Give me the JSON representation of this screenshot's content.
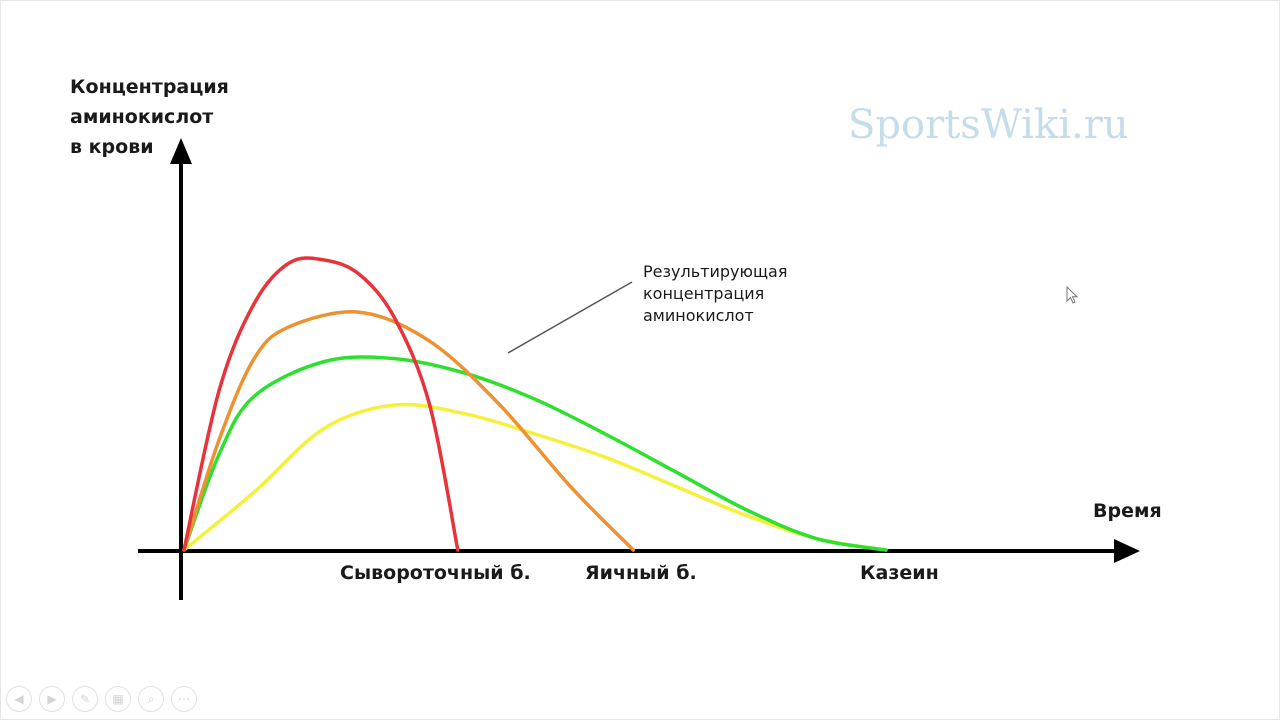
{
  "chart_data": {
    "type": "line",
    "ylabel": "Концентрация\nаминокислот\nв крови",
    "xlabel": "Время",
    "x_tick_labels": [
      {
        "text": "Сывороточный б.",
        "x": 0.39
      },
      {
        "text": "Яичный б.",
        "x": 0.64
      },
      {
        "text": "Казеин",
        "x": 1.0
      }
    ],
    "annotation": "Результирующая\nконцентрация\nаминокислот",
    "series": [
      {
        "color": "#e8333a",
        "points": [
          [
            0,
            0
          ],
          [
            0.05,
            0.55
          ],
          [
            0.1,
            0.85
          ],
          [
            0.15,
            0.99
          ],
          [
            0.2,
            1.0
          ],
          [
            0.25,
            0.95
          ],
          [
            0.3,
            0.8
          ],
          [
            0.35,
            0.5
          ],
          [
            0.39,
            0.0
          ]
        ]
      },
      {
        "color": "#ee9130",
        "points": [
          [
            0,
            0
          ],
          [
            0.05,
            0.38
          ],
          [
            0.1,
            0.66
          ],
          [
            0.15,
            0.77
          ],
          [
            0.25,
            0.82
          ],
          [
            0.35,
            0.72
          ],
          [
            0.45,
            0.5
          ],
          [
            0.55,
            0.22
          ],
          [
            0.64,
            0.0
          ]
        ]
      },
      {
        "color": "#2ee02e",
        "points": [
          [
            0,
            0
          ],
          [
            0.05,
            0.33
          ],
          [
            0.1,
            0.53
          ],
          [
            0.2,
            0.65
          ],
          [
            0.3,
            0.66
          ],
          [
            0.4,
            0.61
          ],
          [
            0.5,
            0.52
          ],
          [
            0.6,
            0.4
          ],
          [
            0.7,
            0.27
          ],
          [
            0.8,
            0.14
          ],
          [
            0.9,
            0.04
          ],
          [
            1.0,
            0.0
          ]
        ]
      },
      {
        "color": "#f4f13c",
        "points": [
          [
            0,
            0
          ],
          [
            0.1,
            0.2
          ],
          [
            0.2,
            0.42
          ],
          [
            0.3,
            0.5
          ],
          [
            0.4,
            0.47
          ],
          [
            0.5,
            0.4
          ],
          [
            0.6,
            0.32
          ],
          [
            0.7,
            0.22
          ],
          [
            0.8,
            0.12
          ],
          [
            0.9,
            0.04
          ],
          [
            1.0,
            0.0
          ]
        ]
      }
    ],
    "xlim": [
      0,
      1.0
    ],
    "ylim": [
      0,
      1.0
    ]
  },
  "watermark": "SportsWiki.ru",
  "controls": [
    "prev-icon",
    "next-icon",
    "pen-icon",
    "slides-icon",
    "zoom-icon",
    "more-icon"
  ],
  "colors": {
    "axis": "#000000",
    "pointer_line": "#555555"
  }
}
